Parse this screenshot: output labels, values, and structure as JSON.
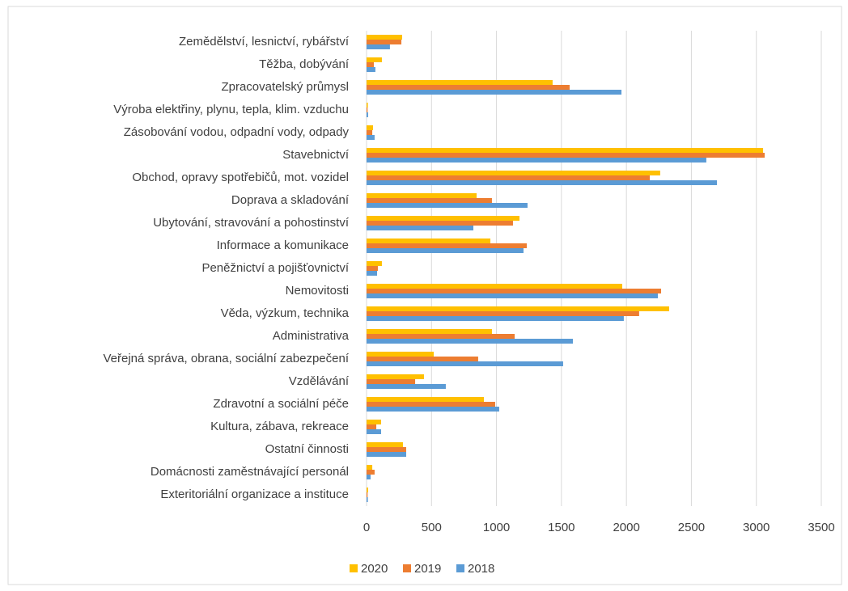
{
  "chart_data": {
    "type": "hbar",
    "categories": [
      "Zemědělství, lesnictví, rybářství",
      "Těžba, dobývání",
      "Zpracovatelský průmysl",
      "Výroba elektřiny, plynu, tepla, klim. vzduchu",
      "Zásobování vodou, odpadní vody, odpady",
      "Stavebnictví",
      "Obchod, opravy spotřebičů, mot. vozidel",
      "Doprava a skladování",
      "Ubytování, stravování a pohostinství",
      "Informace a komunikace",
      "Peněžnictví a pojišťovnictví",
      "Nemovitosti",
      "Věda, výzkum, technika",
      "Administrativa",
      "Veřejná správa, obrana, sociální zabezpečení",
      "Vzdělávání",
      "Zdravotní a sociální péče",
      "Kultura, zábava, rekreace",
      "Ostatní činnosti",
      "Domácnosti zaměstnávající personál",
      "Exteritoriální organizace a instituce"
    ],
    "series": [
      {
        "name": "2020",
        "color": "#ffc000",
        "values": [
          274,
          118,
          1432,
          10,
          50,
          3052,
          2260,
          847,
          1177,
          953,
          118,
          1968,
          2329,
          965,
          517,
          442,
          903,
          112,
          280,
          44,
          12
        ]
      },
      {
        "name": "2019",
        "color": "#ed7d31",
        "values": [
          268,
          56,
          1563,
          8,
          44,
          3064,
          2180,
          965,
          1127,
          1233,
          87,
          2267,
          2098,
          1140,
          859,
          374,
          990,
          75,
          305,
          62,
          8
        ]
      },
      {
        "name": "2018",
        "color": "#5b9bd5",
        "values": [
          180,
          68,
          1962,
          12,
          62,
          2615,
          2697,
          1239,
          822,
          1208,
          81,
          2242,
          1980,
          1588,
          1513,
          610,
          1021,
          112,
          305,
          31,
          10
        ]
      }
    ],
    "xlim": [
      0,
      3500
    ],
    "xticks": [
      0,
      500,
      1000,
      1500,
      2000,
      2500,
      3000,
      3500
    ],
    "grid": true,
    "legend": "bottom"
  }
}
